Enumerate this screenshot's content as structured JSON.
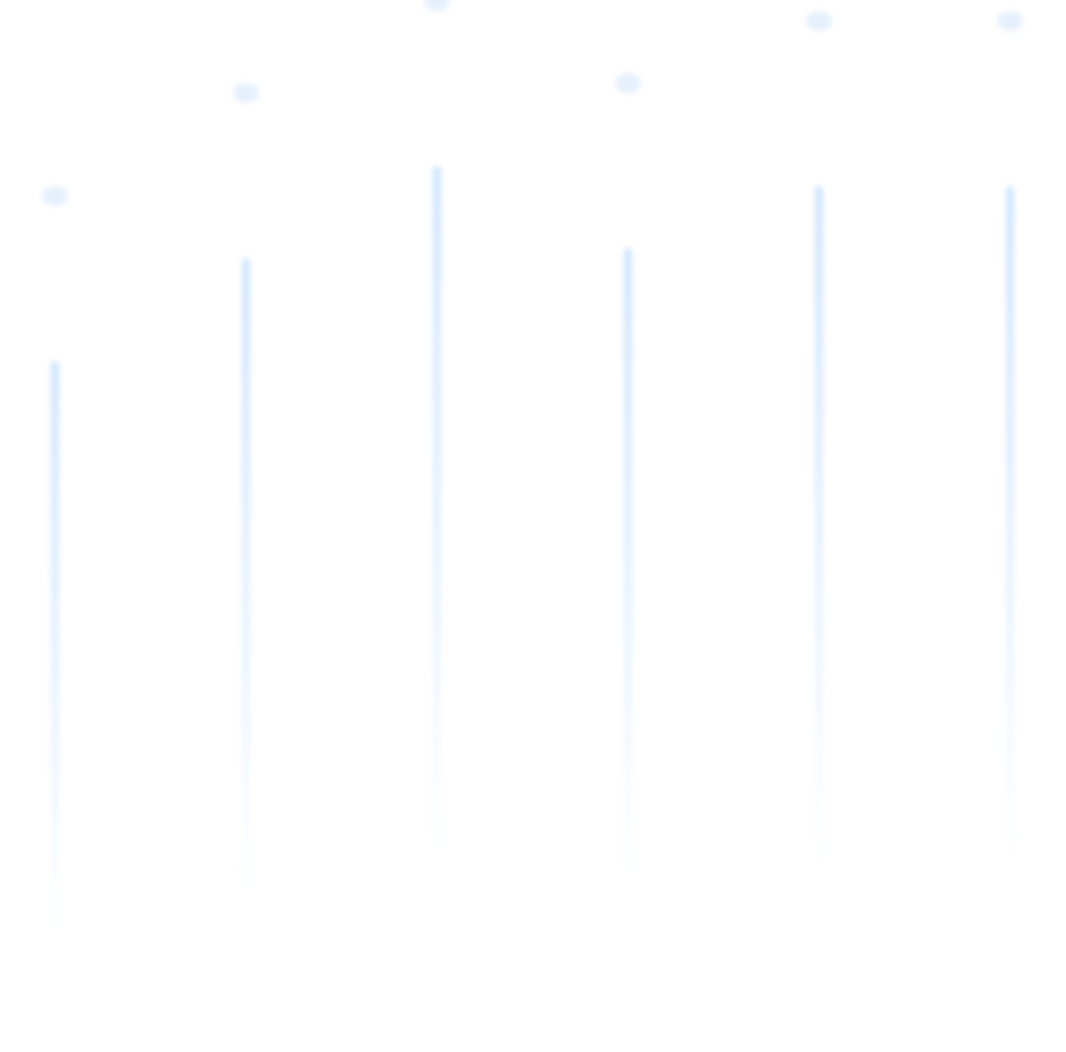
{
  "colors": {
    "background": "#ffffff",
    "line_top": "#cfe5ff",
    "line_bottom": "#ffffff",
    "dot": "#e6f0fc"
  },
  "columns": [
    {
      "level": 0.55
    },
    {
      "level": 0.61
    },
    {
      "level": 0.66
    },
    {
      "level": 0.61
    },
    {
      "level": 0.65
    },
    {
      "level": 0.65
    }
  ]
}
